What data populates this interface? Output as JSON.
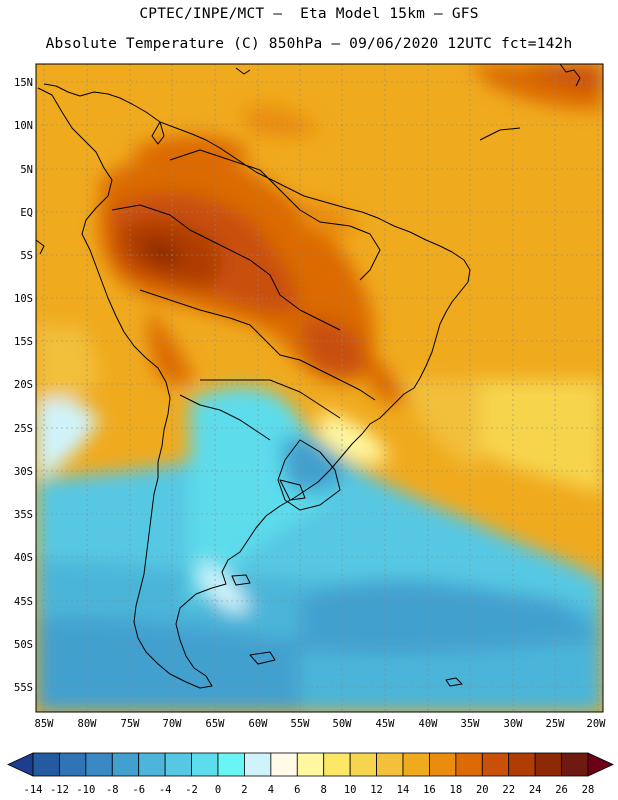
{
  "header": {
    "line1": "CPTEC/INPE/MCT –  Eta Model 15km – GFS",
    "line2": "Absolute Temperature (C) 850hPa – 09/06/2020 12UTC fct=142h"
  },
  "axes": {
    "lat_labels": [
      "15N",
      "10N",
      "5N",
      "EQ",
      "5S",
      "10S",
      "15S",
      "20S",
      "25S",
      "30S",
      "35S",
      "40S",
      "45S",
      "50S",
      "55S"
    ],
    "lon_labels": [
      "85W",
      "80W",
      "75W",
      "70W",
      "65W",
      "60W",
      "55W",
      "50W",
      "45W",
      "40W",
      "35W",
      "30W",
      "25W",
      "20W"
    ]
  },
  "colorbar": {
    "ticks": [
      "-14",
      "-12",
      "-10",
      "-8",
      "-6",
      "-4",
      "-2",
      "0",
      "2",
      "4",
      "6",
      "8",
      "10",
      "12",
      "14",
      "16",
      "18",
      "20",
      "22",
      "24",
      "26",
      "28"
    ],
    "colors": [
      "#1e3d8f",
      "#245aa0",
      "#2f74b5",
      "#3a89c4",
      "#42a0cf",
      "#4cb5d9",
      "#56c8e3",
      "#5ddcec",
      "#6af5f5",
      "#cff3fb",
      "#fffbe8",
      "#fff8a0",
      "#fbe666",
      "#f6d54e",
      "#f2c03a",
      "#f0aa1e",
      "#ea8c0f",
      "#dc6a06",
      "#c95008",
      "#b03d05",
      "#8d2a05",
      "#6f1a10",
      "#6c0018"
    ]
  }
}
